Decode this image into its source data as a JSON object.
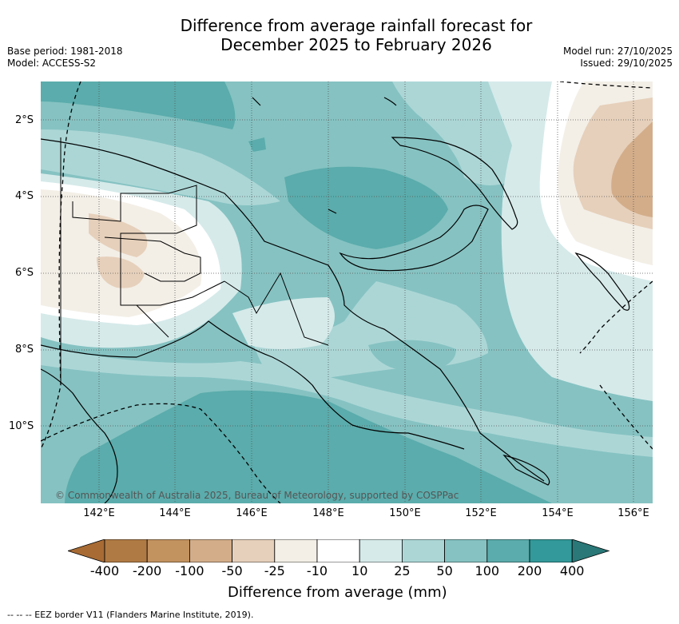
{
  "title": {
    "line1": "Difference from average rainfall forecast for",
    "line2": "December 2025 to February 2026"
  },
  "meta_left": {
    "base_period": "Base period: 1981-2018",
    "model": "Model: ACCESS-S2"
  },
  "meta_right": {
    "model_run": "Model run: 27/10/2025",
    "issued": "Issued: 29/10/2025"
  },
  "map": {
    "copyright": "© Commonwealth of Australia 2025, Bureau of Meteorology, supported by COSPPac",
    "lat_labels": [
      "2°S",
      "4°S",
      "6°S",
      "8°S",
      "10°S"
    ],
    "lon_labels": [
      "142°E",
      "144°E",
      "146°E",
      "148°E",
      "150°E",
      "152°E",
      "154°E",
      "156°E"
    ],
    "lon_range_deg_e": [
      140.6,
      156.5
    ],
    "lat_range_deg_s": [
      1.0,
      12.0
    ]
  },
  "colorbar": {
    "title": "Difference from average (mm)",
    "ticks": [
      "-400",
      "-200",
      "-100",
      "-50",
      "-25",
      "-10",
      "10",
      "25",
      "50",
      "100",
      "200",
      "400"
    ],
    "colors": [
      "#a86b34",
      "#b07a44",
      "#c2925f",
      "#d3ad8a",
      "#e6d0bb",
      "#f3efe7",
      "#ffffff",
      "#d6eaea",
      "#acd6d6",
      "#86c2c2",
      "#5bacac",
      "#33999a",
      "#2a7878"
    ]
  },
  "legend": {
    "eez_text": "-- -- -- EEZ border V11 (Flanders Marine Institute, 2019)."
  }
}
